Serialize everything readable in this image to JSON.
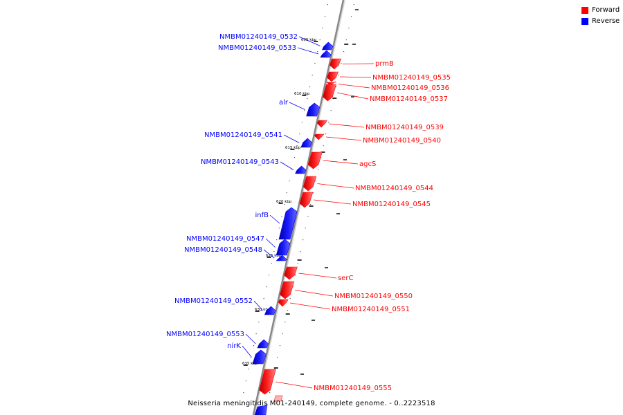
{
  "legend": {
    "forward_label": "Forward",
    "reverse_label": "Reverse",
    "forward_color": "#ff0000",
    "reverse_color": "#0000ff"
  },
  "caption": "Neisseria meningitidis M01-240149, complete genome. - 0..2223518",
  "ticks": [
    "605 kbp",
    "610 kbp",
    "615 kbp",
    "620 kbp",
    "625 kbp",
    "630 kbp",
    "635 kbp"
  ],
  "genes": [
    {
      "label": "NMBM01240149_0532",
      "strand": "reverse"
    },
    {
      "label": "NMBM01240149_0533",
      "strand": "reverse"
    },
    {
      "label": "prmB",
      "strand": "forward"
    },
    {
      "label": "NMBM01240149_0535",
      "strand": "forward"
    },
    {
      "label": "NMBM01240149_0536",
      "strand": "forward"
    },
    {
      "label": "NMBM01240149_0537",
      "strand": "forward"
    },
    {
      "label": "alr",
      "strand": "reverse"
    },
    {
      "label": "NMBM01240149_0539",
      "strand": "forward"
    },
    {
      "label": "NMBM01240149_0540",
      "strand": "forward"
    },
    {
      "label": "NMBM01240149_0541",
      "strand": "reverse"
    },
    {
      "label": "agcS",
      "strand": "forward"
    },
    {
      "label": "NMBM01240149_0543",
      "strand": "reverse"
    },
    {
      "label": "NMBM01240149_0544",
      "strand": "forward"
    },
    {
      "label": "NMBM01240149_0545",
      "strand": "forward"
    },
    {
      "label": "infB",
      "strand": "reverse"
    },
    {
      "label": "NMBM01240149_0547",
      "strand": "reverse"
    },
    {
      "label": "NMBM01240149_0548",
      "strand": "reverse"
    },
    {
      "label": "serC",
      "strand": "forward"
    },
    {
      "label": "NMBM01240149_0550",
      "strand": "forward"
    },
    {
      "label": "NMBM01240149_0551",
      "strand": "forward"
    },
    {
      "label": "NMBM01240149_0552",
      "strand": "reverse"
    },
    {
      "label": "NMBM01240149_0553",
      "strand": "reverse"
    },
    {
      "label": "nirK",
      "strand": "reverse"
    },
    {
      "label": "NMBM01240149_0555",
      "strand": "forward"
    }
  ]
}
